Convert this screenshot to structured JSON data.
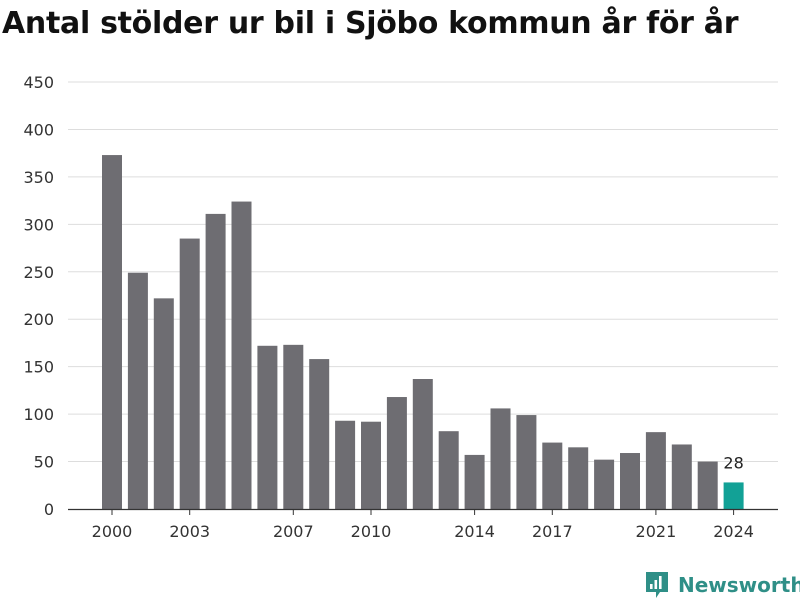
{
  "chart_data": {
    "type": "bar",
    "title": "Antal stölder ur bil i Sjöbo kommun år för år",
    "xlabel": "",
    "ylabel": "",
    "categories": [
      2000,
      2001,
      2002,
      2003,
      2004,
      2005,
      2006,
      2007,
      2008,
      2009,
      2010,
      2011,
      2012,
      2013,
      2014,
      2015,
      2016,
      2017,
      2018,
      2019,
      2020,
      2021,
      2022,
      2023,
      2024
    ],
    "values": [
      373,
      249,
      222,
      285,
      311,
      324,
      172,
      173,
      158,
      93,
      92,
      118,
      137,
      82,
      57,
      106,
      99,
      70,
      65,
      52,
      59,
      81,
      68,
      50,
      28
    ],
    "x_tick_labels": [
      "2000",
      "2003",
      "2007",
      "2010",
      "2014",
      "2017",
      "2021",
      "2024"
    ],
    "y_ticks": [
      0,
      50,
      100,
      150,
      200,
      250,
      300,
      350,
      400,
      450
    ],
    "ylim": [
      0,
      450
    ],
    "grid": true,
    "highlight": {
      "category": 2024,
      "label": "28"
    },
    "colors": {
      "bar": "#6e6d72",
      "highlight": "#12a196",
      "grid": "#dddddd",
      "axis": "#333333"
    }
  },
  "brand": {
    "name": "Newsworthy",
    "icon": "newsworthy-logo-icon",
    "color": "#2f8f87"
  }
}
